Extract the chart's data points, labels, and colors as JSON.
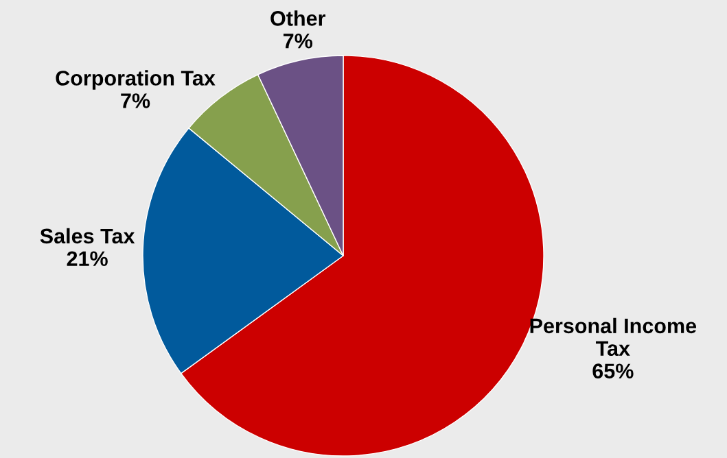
{
  "chart_data": {
    "type": "pie",
    "categories": [
      "Personal Income Tax",
      "Sales Tax",
      "Corporation Tax",
      "Other"
    ],
    "values": [
      65,
      21,
      7,
      7
    ],
    "colors": [
      "#cc0000",
      "#015a9c",
      "#86a04d",
      "#6b5185"
    ],
    "value_labels": [
      "65%",
      "21%",
      "7%",
      "7%"
    ]
  }
}
